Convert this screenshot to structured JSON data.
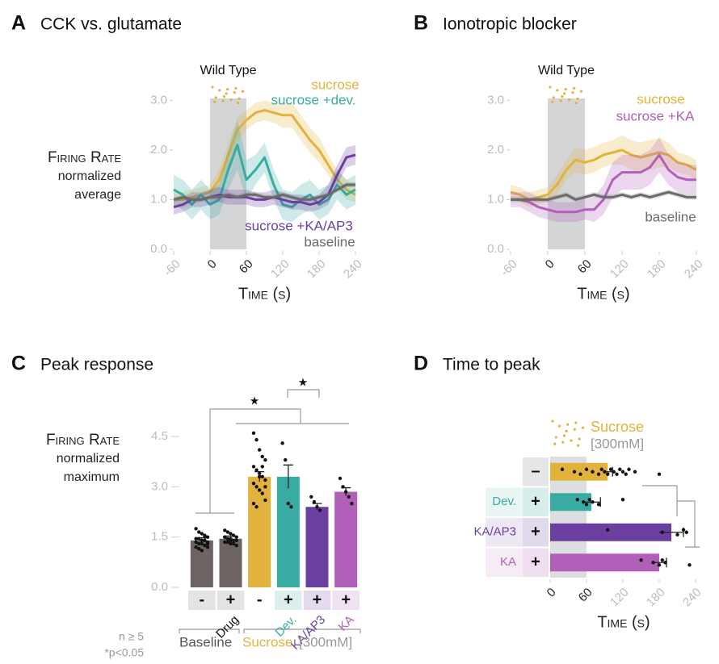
{
  "chart_data": [
    {
      "type": "line",
      "letter": "A",
      "title": "CCK vs. glutamate",
      "ylabel": [
        "Firing Rate",
        "normalized",
        "average"
      ],
      "xlabel": "Time (s)",
      "annotation": "Wild Type",
      "x": [
        -60,
        -45,
        -30,
        -15,
        0,
        15,
        30,
        45,
        60,
        75,
        90,
        105,
        120,
        135,
        150,
        165,
        180,
        195,
        210,
        225,
        240
      ],
      "xlim": [
        -60,
        240
      ],
      "ylim": [
        0,
        3.2
      ],
      "xticks": [
        -60,
        0,
        60,
        120,
        180,
        240
      ],
      "yticks": [
        {
          "value": 0,
          "label": "0.0"
        },
        {
          "value": 1,
          "label": "1.0"
        },
        {
          "value": 2,
          "label": "2.0"
        },
        {
          "value": 3,
          "label": "3.0"
        }
      ],
      "shade": [
        0,
        60
      ],
      "series": [
        {
          "name": "sucrose",
          "color": "#e3b23c",
          "values": [
            1.0,
            1.0,
            1.05,
            1.1,
            1.15,
            1.4,
            1.9,
            2.4,
            2.6,
            2.75,
            2.8,
            2.75,
            2.7,
            2.7,
            2.45,
            2.2,
            2.0,
            1.7,
            1.4,
            1.2,
            1.1
          ],
          "error": [
            0.15,
            0.15,
            0.15,
            0.15,
            0.15,
            0.2,
            0.25,
            0.25,
            0.2,
            0.2,
            0.2,
            0.2,
            0.25,
            0.25,
            0.25,
            0.25,
            0.25,
            0.2,
            0.2,
            0.2,
            0.15
          ]
        },
        {
          "name": "sucrose +dev.",
          "color": "#38aca3",
          "values": [
            1.2,
            1.1,
            0.9,
            1.1,
            0.9,
            1.0,
            1.6,
            2.1,
            1.4,
            1.6,
            1.85,
            1.3,
            0.9,
            0.85,
            1.0,
            1.1,
            0.9,
            1.0,
            1.3,
            1.1,
            1.2
          ],
          "error": [
            0.3,
            0.3,
            0.3,
            0.3,
            0.3,
            0.3,
            0.4,
            0.5,
            0.4,
            0.3,
            0.3,
            0.3,
            0.3,
            0.3,
            0.3,
            0.3,
            0.3,
            0.3,
            0.3,
            0.3,
            0.3
          ]
        },
        {
          "name": "sucrose +KA/AP3",
          "color": "#6b3fa0",
          "values": [
            0.85,
            0.9,
            1.0,
            1.0,
            1.05,
            1.1,
            1.05,
            1.05,
            1.05,
            1.0,
            1.0,
            1.05,
            1.0,
            0.95,
            0.95,
            0.9,
            0.95,
            1.1,
            1.5,
            1.85,
            1.9
          ],
          "error": [
            0.15,
            0.15,
            0.15,
            0.15,
            0.15,
            0.15,
            0.15,
            0.15,
            0.15,
            0.15,
            0.15,
            0.15,
            0.15,
            0.15,
            0.15,
            0.15,
            0.15,
            0.2,
            0.2,
            0.2,
            0.2
          ]
        },
        {
          "name": "baseline",
          "color": "#6b6b6b",
          "values": [
            1.0,
            1.05,
            1.0,
            1.0,
            1.05,
            1.05,
            1.1,
            1.05,
            1.1,
            1.1,
            1.05,
            1.05,
            1.1,
            1.05,
            1.0,
            1.0,
            1.05,
            1.1,
            1.2,
            1.3,
            1.3
          ],
          "error": [
            0.05,
            0.05,
            0.05,
            0.05,
            0.05,
            0.05,
            0.05,
            0.05,
            0.05,
            0.05,
            0.05,
            0.05,
            0.05,
            0.05,
            0.05,
            0.05,
            0.05,
            0.05,
            0.05,
            0.05,
            0.05
          ]
        }
      ]
    },
    {
      "type": "line",
      "letter": "B",
      "title": "Ionotropic blocker",
      "xlabel": "Time (s)",
      "annotation": "Wild Type",
      "x": [
        -60,
        -45,
        -30,
        -15,
        0,
        15,
        30,
        45,
        60,
        75,
        90,
        105,
        120,
        135,
        150,
        165,
        180,
        195,
        210,
        225,
        240
      ],
      "xlim": [
        -60,
        240
      ],
      "ylim": [
        0,
        3.2
      ],
      "xticks": [
        -60,
        0,
        60,
        120,
        180,
        240
      ],
      "yticks": [
        {
          "value": 0,
          "label": "0.0"
        },
        {
          "value": 1,
          "label": "1.0"
        },
        {
          "value": 2,
          "label": "2.0"
        },
        {
          "value": 3,
          "label": "3.0"
        }
      ],
      "shade": [
        0,
        60
      ],
      "series": [
        {
          "name": "sucrose",
          "color": "#e3b23c",
          "values": [
            1.15,
            1.1,
            1.0,
            1.05,
            1.1,
            1.3,
            1.6,
            1.8,
            1.75,
            1.8,
            1.9,
            1.95,
            2.0,
            1.9,
            1.85,
            1.9,
            1.95,
            1.9,
            1.75,
            1.7,
            1.6
          ],
          "error": [
            0.15,
            0.15,
            0.15,
            0.15,
            0.15,
            0.2,
            0.2,
            0.25,
            0.25,
            0.25,
            0.25,
            0.25,
            0.3,
            0.3,
            0.3,
            0.3,
            0.3,
            0.25,
            0.2,
            0.2,
            0.2
          ]
        },
        {
          "name": "sucrose +KA",
          "color": "#b060b8",
          "values": [
            1.0,
            1.0,
            0.95,
            0.85,
            0.8,
            0.75,
            0.75,
            0.75,
            0.8,
            0.8,
            1.0,
            1.4,
            1.55,
            1.55,
            1.55,
            1.65,
            1.9,
            1.6,
            1.45,
            1.4,
            1.4
          ],
          "error": [
            0.15,
            0.15,
            0.2,
            0.2,
            0.2,
            0.2,
            0.2,
            0.2,
            0.2,
            0.25,
            0.3,
            0.35,
            0.35,
            0.35,
            0.35,
            0.35,
            0.35,
            0.3,
            0.3,
            0.3,
            0.3
          ]
        },
        {
          "name": "baseline",
          "color": "#6b6b6b",
          "values": [
            1.0,
            1.0,
            1.0,
            1.0,
            1.0,
            1.05,
            1.1,
            1.0,
            1.05,
            1.1,
            1.05,
            1.05,
            1.1,
            1.05,
            1.1,
            1.05,
            1.1,
            1.15,
            1.1,
            1.05,
            1.05
          ],
          "error": [
            0.05,
            0.05,
            0.05,
            0.05,
            0.05,
            0.05,
            0.05,
            0.05,
            0.05,
            0.05,
            0.05,
            0.05,
            0.05,
            0.05,
            0.05,
            0.05,
            0.05,
            0.05,
            0.05,
            0.05,
            0.05
          ]
        }
      ]
    },
    {
      "type": "bar",
      "letter": "C",
      "title": "Peak response",
      "ylabel": [
        "Firing Rate",
        "normalized",
        "maximum"
      ],
      "ylim": [
        0,
        4.8
      ],
      "yticks": [
        {
          "value": 0,
          "label": "0.0"
        },
        {
          "value": 1.5,
          "label": "1.5"
        },
        {
          "value": 3,
          "label": "3.0"
        },
        {
          "value": 4.5,
          "label": "4.5"
        }
      ],
      "categories": [
        null,
        "Drug",
        null,
        "Dev.",
        "KA/AP3",
        "KA"
      ],
      "signs": [
        "-",
        "+",
        "-",
        "+",
        "+",
        "+"
      ],
      "values": [
        1.4,
        1.45,
        3.3,
        3.3,
        2.4,
        2.85
      ],
      "errors": [
        0.08,
        0.08,
        0.15,
        0.35,
        0.1,
        0.12
      ],
      "colors": [
        "#6e6363",
        "#6e6363",
        "#e3b23c",
        "#38aca3",
        "#6b3fa0",
        "#b060b8"
      ],
      "points": [
        [
          1.75,
          1.65,
          1.6,
          1.55,
          1.5,
          1.45,
          1.45,
          1.4,
          1.4,
          1.35,
          1.35,
          1.3,
          1.3,
          1.25,
          1.2,
          1.2,
          1.15,
          1.1,
          1.5,
          1.3
        ],
        [
          1.7,
          1.65,
          1.6,
          1.55,
          1.5,
          1.5,
          1.45,
          1.45,
          1.4,
          1.4,
          1.35,
          1.35,
          1.3,
          1.3,
          1.25,
          1.5,
          1.45,
          1.4
        ],
        [
          4.6,
          4.4,
          4.1,
          3.9,
          3.8,
          3.6,
          3.5,
          3.4,
          3.3,
          3.2,
          3.1,
          3.0,
          2.9,
          2.8,
          2.6,
          2.5,
          2.4,
          3.3,
          3.6,
          3.0
        ],
        [
          4.3,
          3.8,
          2.5,
          2.4
        ],
        [
          2.7,
          2.55,
          2.4,
          2.3
        ],
        [
          3.25,
          3.0,
          2.85,
          2.7,
          2.5
        ]
      ],
      "group_labels": [
        "Baseline",
        "Sucrose",
        "[300mM]"
      ],
      "significance": [
        "★",
        "★"
      ],
      "notes": [
        "n ≥ 5",
        "*p<0.05"
      ]
    },
    {
      "type": "hbar",
      "letter": "D",
      "title": "Time to peak",
      "xlabel": "Time (s)",
      "stimulus": "Sucrose",
      "concentration": "[300mM]",
      "xlim": [
        0,
        240
      ],
      "xticks": [
        0,
        60,
        120,
        180,
        240
      ],
      "shade": [
        0,
        60
      ],
      "categories": [
        null,
        "Dev.",
        "KA/AP3",
        "KA"
      ],
      "signs": [
        "–",
        "+",
        "+",
        "+"
      ],
      "values": [
        95,
        68,
        200,
        180
      ],
      "errors": [
        8,
        15,
        20,
        12
      ],
      "colors": [
        "#e3b23c",
        "#38aca3",
        "#6b3fa0",
        "#b060b8"
      ],
      "points": [
        [
          20,
          40,
          50,
          60,
          70,
          80,
          85,
          90,
          95,
          100,
          105,
          110,
          115,
          120,
          125,
          130,
          140,
          180
        ],
        [
          45,
          55,
          60,
          65,
          70,
          80,
          120
        ],
        [
          95,
          185,
          210,
          220,
          225
        ],
        [
          150,
          170,
          180,
          185,
          190,
          230
        ]
      ]
    }
  ]
}
